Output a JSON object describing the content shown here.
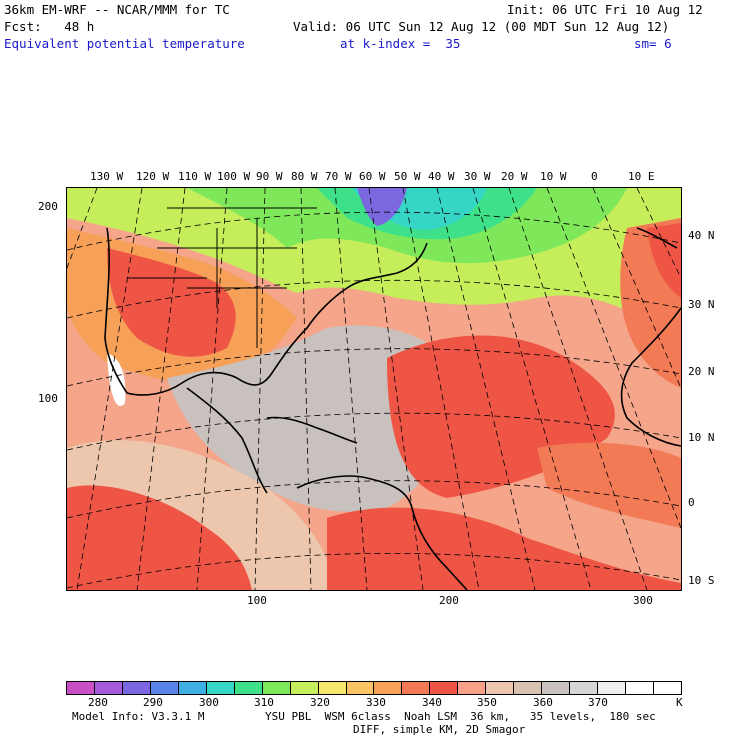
{
  "header": {
    "model_line": "36km EM-WRF -- NCAR/MMM for TC",
    "init": "Init: 06 UTC Fri 10 Aug 12",
    "fcst": "Fcst:   48 h",
    "valid": "Valid: 06 UTC Sun 12 Aug 12 (00 MDT Sun 12 Aug 12)",
    "field": "Equivalent potential temperature",
    "level": "at k-index =  35",
    "smooth": "sm= 6"
  },
  "map": {
    "lon_labels": [
      "130 W",
      "120 W",
      "110 W",
      "100 W",
      "90 W",
      "80 W",
      "70 W",
      "60 W",
      "50 W",
      "40 W",
      "30 W",
      "20 W",
      "10 W",
      "0",
      "10 E"
    ],
    "lat_labels": [
      "40 N",
      "30 N",
      "20 N",
      "10 N",
      "0",
      "10 S"
    ],
    "grid_y_labels": [
      "200",
      "100"
    ],
    "grid_x_labels": [
      "100",
      "200",
      "300"
    ]
  },
  "colorbar": {
    "colors": [
      "#c94fc9",
      "#a45bd9",
      "#7b68e0",
      "#5a84e8",
      "#3fb0e6",
      "#36d6c6",
      "#3ee08a",
      "#7ee85a",
      "#c6ee5a",
      "#f6e66c",
      "#f9c465",
      "#f6a058",
      "#f27a55",
      "#ef5545",
      "#f7a08a",
      "#ecc7ad",
      "#d8c3b0",
      "#c9c1bd",
      "#d6d6d6",
      "#efefef",
      "#ffffff",
      "#ffffff"
    ],
    "labels": [
      "280",
      "290",
      "300",
      "310",
      "320",
      "330",
      "340",
      "350",
      "360",
      "370",
      "K"
    ]
  },
  "footer": {
    "info": "Model Info: V3.3.1 M",
    "physics": "YSU PBL  WSM 6class  Noah LSM  36 km,   35 levels,  180 sec",
    "diff": "DIFF, simple KM, 2D Smagor"
  }
}
